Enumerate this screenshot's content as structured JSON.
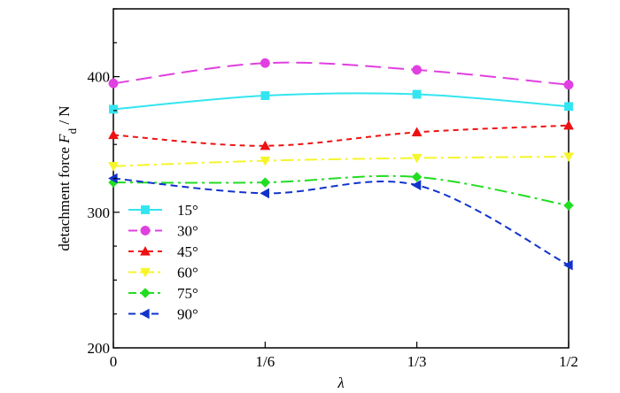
{
  "chart_data": {
    "type": "line",
    "categories": [
      "0",
      "1/6",
      "1/3",
      "1/2"
    ],
    "x": [
      0,
      0.1667,
      0.3333,
      0.5
    ],
    "xlabel": "λ",
    "ylabel": {
      "prefix": "detachment force ",
      "symbol": "F",
      "subscript": "d",
      "suffix": " / N"
    },
    "ylim": [
      200,
      450
    ],
    "yticks": [
      200,
      300,
      400
    ],
    "grid": false,
    "legend": "bottom-left",
    "series": [
      {
        "name": "15°",
        "values": [
          376,
          386,
          387,
          378
        ],
        "color": "#33e5f0",
        "marker": "square",
        "dash": "solid"
      },
      {
        "name": "30°",
        "values": [
          395,
          410,
          405,
          394
        ],
        "color": "#e040e0",
        "marker": "circle",
        "dash": "long-dash"
      },
      {
        "name": "45°",
        "values": [
          357,
          349,
          359,
          364
        ],
        "color": "#ee1111",
        "marker": "triangle-up",
        "dash": "short-dash"
      },
      {
        "name": "60°",
        "values": [
          334,
          338,
          340,
          341
        ],
        "color": "#f5f52a",
        "marker": "triangle-down",
        "dash": "dash-dot"
      },
      {
        "name": "75°",
        "values": [
          322,
          322,
          326,
          305
        ],
        "color": "#22dd22",
        "marker": "diamond",
        "dash": "dash-dot"
      },
      {
        "name": "90°",
        "values": [
          325,
          314,
          320,
          261
        ],
        "color": "#1133cc",
        "marker": "triangle-left",
        "dash": "dash"
      }
    ]
  }
}
